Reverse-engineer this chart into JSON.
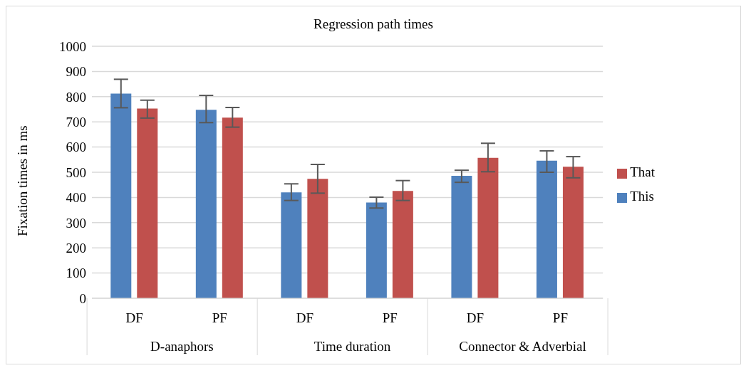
{
  "chart_data": {
    "type": "bar",
    "title": "Regression path times",
    "ylabel": "Fixation times in ms",
    "categories": [
      "DF",
      "PF",
      "DF",
      "PF",
      "DF",
      "PF"
    ],
    "annotations": [
      "D-anaphors",
      "Time duration",
      "Connector & Adverbial"
    ],
    "series": [
      {
        "name": "This",
        "color": "#4f81bd",
        "values": [
          812,
          748,
          420,
          380,
          486,
          546
        ],
        "errors": [
          [
            756,
            869
          ],
          [
            697,
            805
          ],
          [
            388,
            454
          ],
          [
            358,
            401
          ],
          [
            460,
            508
          ],
          [
            500,
            585
          ]
        ]
      },
      {
        "name": "That",
        "color": "#c0504d",
        "values": [
          753,
          717,
          474,
          426,
          557,
          522
        ],
        "errors": [
          [
            715,
            786
          ],
          [
            679,
            757
          ],
          [
            417,
            531
          ],
          [
            388,
            467
          ],
          [
            502,
            615
          ],
          [
            478,
            562
          ]
        ]
      }
    ],
    "ylim": [
      0,
      1000
    ],
    "yticks": [
      0,
      100,
      200,
      300,
      400,
      500,
      600,
      700,
      800,
      900,
      1000
    ],
    "grid": "y",
    "legend": "right"
  }
}
